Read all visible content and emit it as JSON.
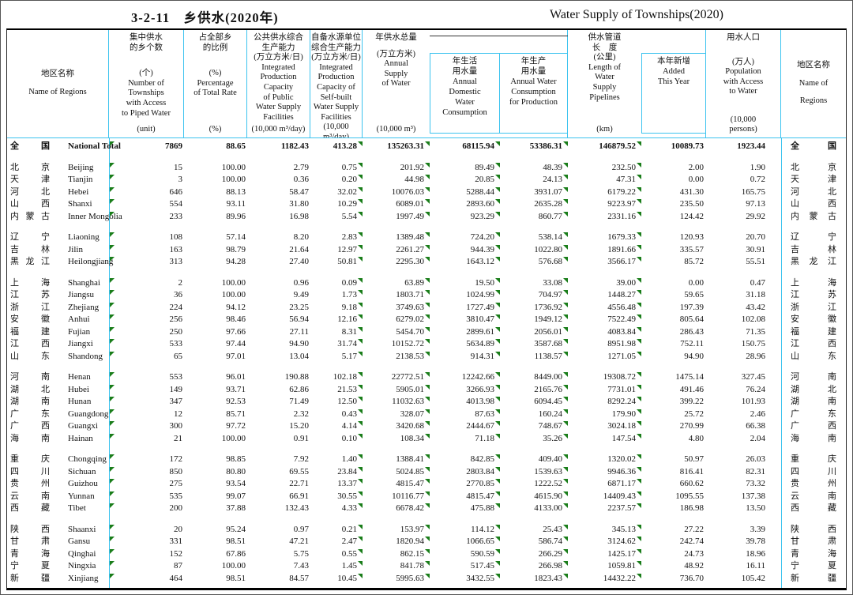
{
  "title": {
    "cn": "3-2-11　乡供水(2020年)",
    "en": "Water Supply of Townships(2020)"
  },
  "colors": {
    "grid_cyan": "#3cc3ef",
    "marker_green": "#1a7d1a",
    "border_black": "#000000"
  },
  "header": {
    "region_left": {
      "cn": "地区名称",
      "en": "Name of Regions"
    },
    "region_right": {
      "cn": "地区名称",
      "en": [
        "Name of",
        "Regions"
      ]
    },
    "columns": [
      {
        "key": "townships",
        "cn": [
          "集中供水",
          "的乡个数"
        ],
        "mid": [
          "(个)",
          "Number of",
          "Townships",
          "with  Access",
          "to Piped Water"
        ],
        "unit": [
          "(unit)"
        ]
      },
      {
        "key": "percentage",
        "cn": [
          "占全部乡",
          "的比例"
        ],
        "mid": [
          "(%)",
          "Percentage",
          "of Total Rate"
        ],
        "unit": [
          "(%)"
        ]
      },
      {
        "key": "public-capacity",
        "cn": [
          "公共供水综合",
          "生产能力",
          "(万立方米/日)"
        ],
        "mid": [
          "Integrated",
          "Production",
          "Capacity",
          "of Public",
          "Water Supply",
          "Facilities"
        ],
        "unit": [
          "(10,000 m³/day)"
        ]
      },
      {
        "key": "self-built-capacity",
        "cn": [
          "自备水源单位",
          "综合生产能力",
          "(万立方米/日)"
        ],
        "mid": [
          "Integrated",
          "Production",
          "Capacity of",
          "Self-built",
          "Water Supply",
          "Facilities"
        ],
        "unit": [
          "(10,000 m³/day)"
        ]
      },
      {
        "key": "annual-supply",
        "cn": [
          "年供水总量"
        ],
        "mid": [
          "(万立方米)",
          "Annual",
          "Supply",
          "of Water"
        ],
        "unit": [
          "(10,000 m³)"
        ]
      },
      {
        "key": "domestic",
        "box": true,
        "lines": [
          "年生活",
          "用水量",
          "Annual",
          "Domestic",
          "Water",
          "Consumption"
        ]
      },
      {
        "key": "production",
        "box": true,
        "lines": [
          "年生产",
          "用水量",
          "Annual Water",
          "Consumption",
          "for Production"
        ]
      },
      {
        "key": "pipelines",
        "cn": [
          "供水管道",
          "长　度"
        ],
        "mid": [
          "(公里)",
          "Length of",
          "Water",
          "Supply",
          "Pipelines"
        ],
        "unit": [
          "(km)"
        ]
      },
      {
        "key": "added",
        "box": true,
        "lines": [
          "本年新增",
          "Added",
          "This Year"
        ]
      },
      {
        "key": "population",
        "cn": [
          "用水人口"
        ],
        "mid": [
          "(万人)",
          "Population",
          "with Access",
          "to Water"
        ],
        "unit": [
          "(10,000",
          "persons)"
        ]
      }
    ]
  },
  "marker_value_columns": [
    3,
    4,
    5,
    6,
    7
  ],
  "groups": [
    [
      {
        "cn": [
          "全",
          "国"
        ],
        "en": "National Total",
        "bold": true,
        "values": [
          "7869",
          "88.65",
          "1182.43",
          "413.28",
          "135263.31",
          "68115.94",
          "53386.31",
          "146879.52",
          "10089.73",
          "1923.44"
        ]
      }
    ],
    [
      {
        "cn": [
          "北",
          "京"
        ],
        "en": "Beijing",
        "values": [
          "15",
          "100.00",
          "2.79",
          "0.75",
          "201.92",
          "89.49",
          "48.39",
          "232.50",
          "2.00",
          "1.90"
        ]
      },
      {
        "cn": [
          "天",
          "津"
        ],
        "en": "Tianjin",
        "values": [
          "3",
          "100.00",
          "0.36",
          "0.20",
          "44.98",
          "20.85",
          "24.13",
          "47.31",
          "0.00",
          "0.72"
        ]
      },
      {
        "cn": [
          "河",
          "北"
        ],
        "en": "Hebei",
        "values": [
          "646",
          "88.13",
          "58.47",
          "32.02",
          "10076.03",
          "5288.44",
          "3931.07",
          "6179.22",
          "431.30",
          "165.75"
        ]
      },
      {
        "cn": [
          "山",
          "西"
        ],
        "en": "Shanxi",
        "values": [
          "554",
          "93.11",
          "31.80",
          "10.29",
          "6089.01",
          "2893.60",
          "2635.28",
          "9223.97",
          "235.50",
          "97.13"
        ]
      },
      {
        "cn": [
          "内",
          "蒙",
          "古"
        ],
        "en": "Inner Mongolia",
        "values": [
          "233",
          "89.96",
          "16.98",
          "5.54",
          "1997.49",
          "923.29",
          "860.77",
          "2331.16",
          "124.42",
          "29.92"
        ]
      }
    ],
    [
      {
        "cn": [
          "辽",
          "宁"
        ],
        "en": "Liaoning",
        "values": [
          "108",
          "57.14",
          "8.20",
          "2.83",
          "1389.48",
          "724.20",
          "538.14",
          "1679.33",
          "120.93",
          "20.70"
        ]
      },
      {
        "cn": [
          "吉",
          "林"
        ],
        "en": "Jilin",
        "values": [
          "163",
          "98.79",
          "21.64",
          "12.97",
          "2261.27",
          "944.39",
          "1022.80",
          "1891.66",
          "335.57",
          "30.91"
        ]
      },
      {
        "cn": [
          "黑",
          "龙",
          "江"
        ],
        "en": "Heilongjiang",
        "values": [
          "313",
          "94.28",
          "27.40",
          "50.81",
          "2295.30",
          "1643.12",
          "576.68",
          "3566.17",
          "85.72",
          "55.51"
        ]
      }
    ],
    [
      {
        "cn": [
          "上",
          "海"
        ],
        "en": "Shanghai",
        "values": [
          "2",
          "100.00",
          "0.96",
          "0.09",
          "63.89",
          "19.50",
          "33.08",
          "39.00",
          "0.00",
          "0.47"
        ]
      },
      {
        "cn": [
          "江",
          "苏"
        ],
        "en": "Jiangsu",
        "values": [
          "36",
          "100.00",
          "9.49",
          "1.73",
          "1803.71",
          "1024.99",
          "704.97",
          "1448.27",
          "59.65",
          "31.18"
        ]
      },
      {
        "cn": [
          "浙",
          "江"
        ],
        "en": "Zhejiang",
        "values": [
          "224",
          "94.12",
          "23.25",
          "9.18",
          "3749.63",
          "1727.49",
          "1736.92",
          "4556.48",
          "197.39",
          "43.42"
        ]
      },
      {
        "cn": [
          "安",
          "徽"
        ],
        "en": "Anhui",
        "values": [
          "256",
          "98.46",
          "56.94",
          "12.16",
          "6279.02",
          "3810.47",
          "1949.12",
          "7522.49",
          "805.64",
          "102.08"
        ]
      },
      {
        "cn": [
          "福",
          "建"
        ],
        "en": "Fujian",
        "values": [
          "250",
          "97.66",
          "27.11",
          "8.31",
          "5454.70",
          "2899.61",
          "2056.01",
          "4083.84",
          "286.43",
          "71.35"
        ]
      },
      {
        "cn": [
          "江",
          "西"
        ],
        "en": "Jiangxi",
        "values": [
          "533",
          "97.44",
          "94.90",
          "31.74",
          "10152.72",
          "5634.89",
          "3587.68",
          "8951.98",
          "752.11",
          "150.75"
        ]
      },
      {
        "cn": [
          "山",
          "东"
        ],
        "en": "Shandong",
        "values": [
          "65",
          "97.01",
          "13.04",
          "5.17",
          "2138.53",
          "914.31",
          "1138.57",
          "1271.05",
          "94.90",
          "28.96"
        ]
      }
    ],
    [
      {
        "cn": [
          "河",
          "南"
        ],
        "en": "Henan",
        "values": [
          "553",
          "96.01",
          "190.88",
          "102.18",
          "22772.51",
          "12242.66",
          "8449.00",
          "19308.72",
          "1475.14",
          "327.45"
        ]
      },
      {
        "cn": [
          "湖",
          "北"
        ],
        "en": "Hubei",
        "values": [
          "149",
          "93.71",
          "62.86",
          "21.53",
          "5905.01",
          "3266.93",
          "2165.76",
          "7731.01",
          "491.46",
          "76.24"
        ]
      },
      {
        "cn": [
          "湖",
          "南"
        ],
        "en": "Hunan",
        "values": [
          "347",
          "92.53",
          "71.49",
          "12.50",
          "11032.63",
          "4013.98",
          "6094.45",
          "8292.24",
          "399.22",
          "101.93"
        ]
      },
      {
        "cn": [
          "广",
          "东"
        ],
        "en": "Guangdong",
        "values": [
          "12",
          "85.71",
          "2.32",
          "0.43",
          "328.07",
          "87.63",
          "160.24",
          "179.90",
          "25.72",
          "2.46"
        ]
      },
      {
        "cn": [
          "广",
          "西"
        ],
        "en": "Guangxi",
        "values": [
          "300",
          "97.72",
          "15.20",
          "4.14",
          "3420.68",
          "2444.67",
          "748.67",
          "3024.18",
          "270.99",
          "66.38"
        ]
      },
      {
        "cn": [
          "海",
          "南"
        ],
        "en": "Hainan",
        "values": [
          "21",
          "100.00",
          "0.91",
          "0.10",
          "108.34",
          "71.18",
          "35.26",
          "147.54",
          "4.80",
          "2.04"
        ]
      }
    ],
    [
      {
        "cn": [
          "重",
          "庆"
        ],
        "en": "Chongqing",
        "values": [
          "172",
          "98.85",
          "7.92",
          "1.40",
          "1388.41",
          "842.85",
          "409.40",
          "1320.02",
          "50.97",
          "26.03"
        ]
      },
      {
        "cn": [
          "四",
          "川"
        ],
        "en": "Sichuan",
        "values": [
          "850",
          "80.80",
          "69.55",
          "23.84",
          "5024.85",
          "2803.84",
          "1539.63",
          "9946.36",
          "816.41",
          "82.31"
        ]
      },
      {
        "cn": [
          "贵",
          "州"
        ],
        "en": "Guizhou",
        "values": [
          "275",
          "93.54",
          "22.71",
          "13.37",
          "4815.47",
          "2770.85",
          "1222.52",
          "6871.17",
          "660.62",
          "73.32"
        ]
      },
      {
        "cn": [
          "云",
          "南"
        ],
        "en": "Yunnan",
        "values": [
          "535",
          "99.07",
          "66.91",
          "30.55",
          "10116.77",
          "4815.47",
          "4615.90",
          "14409.43",
          "1095.55",
          "137.38"
        ]
      },
      {
        "cn": [
          "西",
          "藏"
        ],
        "en": "Tibet",
        "values": [
          "200",
          "37.88",
          "132.43",
          "4.33",
          "6678.42",
          "475.88",
          "4133.00",
          "2237.57",
          "186.98",
          "13.50"
        ]
      }
    ],
    [
      {
        "cn": [
          "陕",
          "西"
        ],
        "en": "Shaanxi",
        "values": [
          "20",
          "95.24",
          "0.97",
          "0.21",
          "153.97",
          "114.12",
          "25.43",
          "345.13",
          "27.22",
          "3.39"
        ]
      },
      {
        "cn": [
          "甘",
          "肃"
        ],
        "en": "Gansu",
        "values": [
          "331",
          "98.51",
          "47.21",
          "2.47",
          "1820.94",
          "1066.65",
          "586.74",
          "3124.62",
          "242.74",
          "39.78"
        ]
      },
      {
        "cn": [
          "青",
          "海"
        ],
        "en": "Qinghai",
        "values": [
          "152",
          "67.86",
          "5.75",
          "0.55",
          "862.15",
          "590.59",
          "266.29",
          "1425.17",
          "24.73",
          "18.96"
        ]
      },
      {
        "cn": [
          "宁",
          "夏"
        ],
        "en": "Ningxia",
        "values": [
          "87",
          "100.00",
          "7.43",
          "1.45",
          "841.78",
          "517.45",
          "266.98",
          "1059.81",
          "48.92",
          "16.11"
        ]
      },
      {
        "cn": [
          "新",
          "疆"
        ],
        "en": "Xinjiang",
        "values": [
          "464",
          "98.51",
          "84.57",
          "10.45",
          "5995.63",
          "3432.55",
          "1823.43",
          "14432.22",
          "736.70",
          "105.42"
        ]
      }
    ]
  ]
}
